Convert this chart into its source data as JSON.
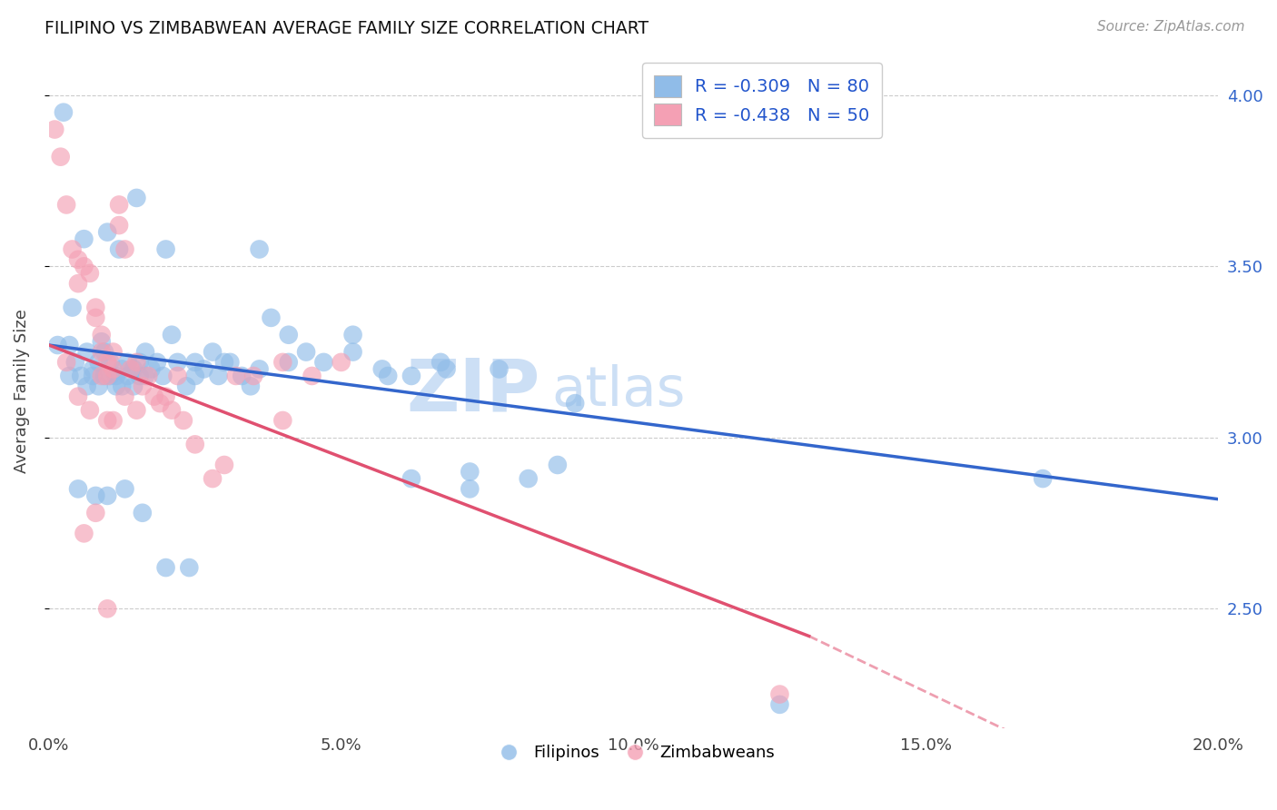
{
  "title": "FILIPINO VS ZIMBABWEAN AVERAGE FAMILY SIZE CORRELATION CHART",
  "source": "Source: ZipAtlas.com",
  "ylabel": "Average Family Size",
  "xlabel_ticks": [
    "0.0%",
    "5.0%",
    "10.0%",
    "15.0%",
    "20.0%"
  ],
  "xlabel_vals": [
    0.0,
    5.0,
    10.0,
    15.0,
    20.0
  ],
  "yticks": [
    2.5,
    3.0,
    3.5,
    4.0
  ],
  "xmin": 0.0,
  "xmax": 20.0,
  "ymin": 2.15,
  "ymax": 4.12,
  "legend_blue_r": "R = -0.309",
  "legend_blue_n": "N = 80",
  "legend_pink_r": "R = -0.438",
  "legend_pink_n": "N = 50",
  "blue_color": "#90bce8",
  "pink_color": "#f4a0b4",
  "blue_line_color": "#3366cc",
  "pink_line_color": "#e05070",
  "pink_dash_color": "#f0a0b8",
  "watermark_zip": "ZIP",
  "watermark_atlas": "atlas",
  "blue_line_start_y": 3.27,
  "blue_line_end_y": 2.82,
  "pink_line_start_y": 3.27,
  "pink_line_solid_end_x": 13.0,
  "pink_line_solid_end_y": 2.42,
  "pink_line_dash_end_x": 20.0,
  "pink_line_dash_end_y": 1.85,
  "blue_scatter_x": [
    0.15,
    0.25,
    0.35,
    0.35,
    0.45,
    0.55,
    0.65,
    0.65,
    0.75,
    0.75,
    0.85,
    0.85,
    0.95,
    0.95,
    1.05,
    1.05,
    1.15,
    1.15,
    1.25,
    1.25,
    1.35,
    1.35,
    1.45,
    1.45,
    1.55,
    1.55,
    1.65,
    1.65,
    1.75,
    1.85,
    1.95,
    2.1,
    2.2,
    2.35,
    2.5,
    2.65,
    2.8,
    2.9,
    3.1,
    3.3,
    3.45,
    3.6,
    3.8,
    4.1,
    4.4,
    4.7,
    5.2,
    5.7,
    6.2,
    6.7,
    7.2,
    7.7,
    8.2,
    8.7,
    9.0,
    1.0,
    1.2,
    1.5,
    2.0,
    2.5,
    3.0,
    3.6,
    4.1,
    5.2,
    5.8,
    6.2,
    6.8,
    7.2,
    0.5,
    0.8,
    1.0,
    1.3,
    1.6,
    2.0,
    2.4,
    0.4,
    0.6,
    0.9,
    17.0,
    12.5
  ],
  "blue_scatter_y": [
    3.27,
    3.95,
    3.27,
    3.18,
    3.22,
    3.18,
    3.25,
    3.15,
    3.2,
    3.18,
    3.22,
    3.15,
    3.25,
    3.18,
    3.22,
    3.18,
    3.18,
    3.15,
    3.2,
    3.15,
    3.22,
    3.18,
    3.2,
    3.15,
    3.22,
    3.18,
    3.25,
    3.18,
    3.2,
    3.22,
    3.18,
    3.3,
    3.22,
    3.15,
    3.22,
    3.2,
    3.25,
    3.18,
    3.22,
    3.18,
    3.15,
    3.2,
    3.35,
    3.3,
    3.25,
    3.22,
    3.3,
    3.2,
    3.18,
    3.22,
    2.85,
    3.2,
    2.88,
    2.92,
    3.1,
    3.6,
    3.55,
    3.7,
    3.55,
    3.18,
    3.22,
    3.55,
    3.22,
    3.25,
    3.18,
    2.88,
    3.2,
    2.9,
    2.85,
    2.83,
    2.83,
    2.85,
    2.78,
    2.62,
    2.62,
    3.38,
    3.58,
    3.28,
    2.88,
    2.22
  ],
  "pink_scatter_x": [
    0.1,
    0.2,
    0.3,
    0.4,
    0.5,
    0.5,
    0.6,
    0.7,
    0.8,
    0.8,
    0.9,
    0.9,
    1.0,
    1.0,
    1.1,
    1.1,
    1.2,
    1.2,
    1.3,
    1.4,
    1.5,
    1.6,
    1.7,
    1.8,
    1.9,
    2.0,
    2.1,
    2.2,
    2.3,
    2.5,
    3.0,
    3.5,
    4.0,
    4.5,
    5.0,
    0.3,
    0.5,
    0.7,
    0.9,
    1.1,
    1.3,
    1.5,
    2.8,
    0.6,
    0.8,
    1.0,
    4.0,
    3.2,
    12.5,
    1.0
  ],
  "pink_scatter_y": [
    3.9,
    3.82,
    3.68,
    3.55,
    3.52,
    3.45,
    3.5,
    3.48,
    3.38,
    3.35,
    3.3,
    3.25,
    3.22,
    3.18,
    3.25,
    3.2,
    3.68,
    3.62,
    3.55,
    3.2,
    3.22,
    3.15,
    3.18,
    3.12,
    3.1,
    3.12,
    3.08,
    3.18,
    3.05,
    2.98,
    2.92,
    3.18,
    3.22,
    3.18,
    3.22,
    3.22,
    3.12,
    3.08,
    3.18,
    3.05,
    3.12,
    3.08,
    2.88,
    2.72,
    2.78,
    3.05,
    3.05,
    3.18,
    2.25,
    2.5
  ]
}
